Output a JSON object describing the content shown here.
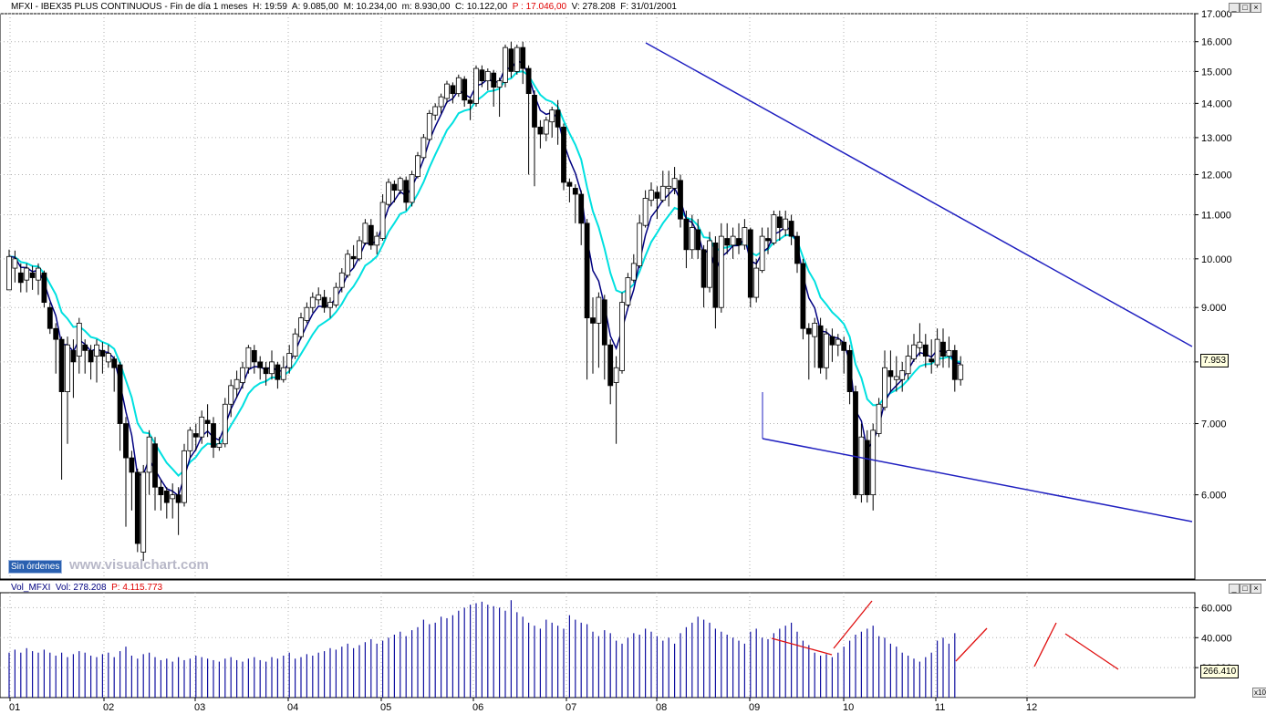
{
  "header": {
    "symbol_title": "MFXI - IBEX35 PLUS CONTINUOUS - Fin de día 1 meses",
    "h": "H: 19:59",
    "a": "A: 9.085,00",
    "m": "M: 10.234,00",
    "mn": "m: 8.930,00",
    "c": "C: 10.122,00",
    "p": "P : 17.046,00",
    "v": "V: 278.208",
    "f": "F: 31/01/2001"
  },
  "vol_header": {
    "title": "Vol_MFXI",
    "vol": "Vol: 278.208",
    "p": "P: 4.115.773"
  },
  "buttons": [
    "_",
    "□",
    "×"
  ],
  "sin_ordenes": "Sin órdenes",
  "watermark": "www.visualchart.com",
  "last_price_tag": "7.953",
  "last_volume_tag": "266.410",
  "volume_scale_tag": "x10",
  "colors": {
    "candle": "#000000",
    "ma_fast": "#000080",
    "ma_slow": "#00e0e0",
    "trend": "#2020c0",
    "volume": "#1010a0",
    "vol_annot": "#e01010",
    "title_red": "#e00000",
    "title_blue": "#000080"
  },
  "chart_data": {
    "type": "candlestick",
    "price_axis": {
      "scale": "log",
      "ticks": [
        "6.000",
        "7.000",
        "8.000",
        "9.000",
        "10.000",
        "11.000",
        "12.000",
        "13.000",
        "14.000",
        "15.000",
        "16.000",
        "17.000"
      ],
      "tick_values": [
        6000,
        7000,
        8000,
        9000,
        10000,
        11000,
        12000,
        13000,
        14000,
        15000,
        16000,
        17000
      ]
    },
    "volume_axis": {
      "ticks": [
        "20.000",
        "40.000",
        "60.000"
      ],
      "tick_values": [
        20000,
        40000,
        60000
      ]
    },
    "x_labels": [
      "01",
      "02",
      "03",
      "04",
      "05",
      "06",
      "07",
      "08",
      "09",
      "10",
      "11",
      "12"
    ],
    "grid": true,
    "candles": [
      [
        9350,
        10050,
        10200,
        9400
      ],
      [
        9800,
        10000,
        10180,
        9500
      ],
      [
        9700,
        9500,
        9900,
        9300
      ],
      [
        9550,
        9800,
        9900,
        9300
      ],
      [
        9700,
        9600,
        9850,
        9350
      ],
      [
        9550,
        9800,
        9900,
        9250
      ],
      [
        9700,
        9100,
        9750,
        9000
      ],
      [
        9000,
        8600,
        9100,
        8500
      ],
      [
        8600,
        8400,
        8700,
        7800
      ],
      [
        8400,
        7500,
        8450,
        6200
      ],
      [
        7500,
        8300,
        8450,
        6700
      ],
      [
        8200,
        8000,
        8400,
        7400
      ],
      [
        8100,
        8700,
        8800,
        7800
      ],
      [
        8300,
        8200,
        8400,
        7800
      ],
      [
        8200,
        8000,
        8300,
        7700
      ],
      [
        8100,
        8300,
        8400,
        7650
      ],
      [
        8200,
        8100,
        8350,
        7800
      ],
      [
        8000,
        8150,
        8300,
        7900
      ],
      [
        8050,
        7900,
        8100,
        7500
      ],
      [
        7950,
        7000,
        8000,
        6600
      ],
      [
        7000,
        6500,
        7100,
        5600
      ],
      [
        6500,
        6300,
        6600,
        5800
      ],
      [
        6300,
        5400,
        6350,
        5300
      ],
      [
        5300,
        6300,
        6400,
        5200
      ],
      [
        6300,
        6800,
        6900,
        6000
      ],
      [
        6700,
        6100,
        6800,
        5800
      ],
      [
        6100,
        6000,
        6200,
        5800
      ],
      [
        6050,
        5900,
        6100,
        5700
      ],
      [
        5950,
        6000,
        6150,
        5700
      ],
      [
        6000,
        5900,
        6100,
        5500
      ],
      [
        5900,
        6600,
        6700,
        5850
      ],
      [
        6600,
        6900,
        6950,
        6500
      ],
      [
        6850,
        6800,
        7000,
        6600
      ],
      [
        6800,
        7100,
        7200,
        6700
      ],
      [
        7050,
        7000,
        7300,
        6800
      ],
      [
        7000,
        6650,
        7100,
        6500
      ],
      [
        6650,
        6700,
        6800,
        6600
      ],
      [
        6700,
        7300,
        7400,
        6650
      ],
      [
        7300,
        7600,
        7700,
        7100
      ],
      [
        7550,
        7700,
        7850,
        7400
      ],
      [
        7650,
        7900,
        8000,
        7550
      ],
      [
        7900,
        8250,
        8300,
        7800
      ],
      [
        8200,
        8000,
        8300,
        7800
      ],
      [
        8000,
        7900,
        8100,
        7700
      ],
      [
        7900,
        7800,
        8000,
        7600
      ],
      [
        7800,
        8000,
        8200,
        7700
      ],
      [
        7950,
        7700,
        8000,
        7550
      ],
      [
        7700,
        7900,
        8100,
        7650
      ],
      [
        7900,
        8150,
        8300,
        7800
      ],
      [
        8100,
        8500,
        8600,
        8050
      ],
      [
        8450,
        8800,
        8900,
        8400
      ],
      [
        8750,
        9000,
        9100,
        8700
      ],
      [
        9000,
        9200,
        9300,
        8900
      ],
      [
        9150,
        9250,
        9400,
        9050
      ],
      [
        9200,
        9000,
        9350,
        8900
      ],
      [
        9000,
        9100,
        9200,
        8800
      ],
      [
        9050,
        9400,
        9500,
        9000
      ],
      [
        9400,
        9700,
        9800,
        9300
      ],
      [
        9650,
        10100,
        10200,
        9600
      ],
      [
        10050,
        10000,
        10300,
        9800
      ],
      [
        10000,
        10400,
        10500,
        9950
      ],
      [
        10350,
        10800,
        10900,
        10300
      ],
      [
        10750,
        10300,
        10900,
        10200
      ],
      [
        10300,
        10500,
        10600,
        10100
      ],
      [
        10450,
        11300,
        11500,
        10400
      ],
      [
        11250,
        11800,
        11900,
        11200
      ],
      [
        11750,
        11600,
        11850,
        11300
      ],
      [
        11600,
        11900,
        11950,
        11500
      ],
      [
        11850,
        11300,
        11950,
        11100
      ],
      [
        11300,
        12000,
        12100,
        11200
      ],
      [
        11950,
        12500,
        12600,
        11900
      ],
      [
        12450,
        13000,
        13100,
        12400
      ],
      [
        12950,
        13700,
        13800,
        12900
      ],
      [
        13650,
        13900,
        14000,
        13500
      ],
      [
        13900,
        14200,
        14300,
        13700
      ],
      [
        14150,
        14600,
        14700,
        14000
      ],
      [
        14550,
        14300,
        14650,
        14000
      ],
      [
        14300,
        14800,
        14900,
        14200
      ],
      [
        14750,
        14100,
        14850,
        13900
      ],
      [
        14100,
        14000,
        14200,
        13500
      ],
      [
        14000,
        15100,
        15200,
        13900
      ],
      [
        15050,
        14700,
        15200,
        14500
      ],
      [
        14700,
        15000,
        15100,
        14400
      ],
      [
        14950,
        14500,
        15050,
        13900
      ],
      [
        14500,
        14700,
        14800,
        13600
      ],
      [
        14650,
        15800,
        15900,
        14500
      ],
      [
        15750,
        15000,
        16000,
        14800
      ],
      [
        15000,
        15800,
        15900,
        14900
      ],
      [
        15800,
        15100,
        16000,
        14600
      ],
      [
        15100,
        14300,
        15200,
        12000
      ],
      [
        14250,
        13300,
        14400,
        11700
      ],
      [
        13300,
        13100,
        13500,
        12700
      ],
      [
        13100,
        13500,
        13600,
        12900
      ],
      [
        13450,
        13800,
        13900,
        13000
      ],
      [
        13800,
        13300,
        14100,
        12800
      ],
      [
        13300,
        11800,
        13400,
        11600
      ],
      [
        11800,
        11700,
        11900,
        11300
      ],
      [
        11650,
        11500,
        11750,
        10800
      ],
      [
        11500,
        10800,
        11600,
        10300
      ],
      [
        10800,
        8800,
        10900,
        7700
      ],
      [
        8800,
        8700,
        9200,
        7800
      ],
      [
        8700,
        9200,
        9300,
        7900
      ],
      [
        9150,
        8300,
        9250,
        7700
      ],
      [
        8300,
        7600,
        8400,
        7300
      ],
      [
        7650,
        7900,
        8100,
        6700
      ],
      [
        7850,
        9100,
        9300,
        7800
      ],
      [
        9050,
        9600,
        9700,
        9000
      ],
      [
        9550,
        9900,
        10100,
        9500
      ],
      [
        9850,
        10800,
        11000,
        9800
      ],
      [
        10750,
        11400,
        11600,
        10700
      ],
      [
        11350,
        11600,
        11800,
        11200
      ],
      [
        11550,
        11400,
        11700,
        10900
      ],
      [
        11350,
        11700,
        12100,
        11300
      ],
      [
        11650,
        11700,
        12100,
        11200
      ],
      [
        11650,
        11900,
        12200,
        11500
      ],
      [
        11850,
        10900,
        12000,
        10700
      ],
      [
        10900,
        10200,
        11100,
        9800
      ],
      [
        10200,
        10700,
        11000,
        10000
      ],
      [
        10650,
        10200,
        10900,
        10000
      ],
      [
        10200,
        9400,
        10300,
        9000
      ],
      [
        9400,
        10400,
        10600,
        9300
      ],
      [
        10350,
        9000,
        10500,
        8600
      ],
      [
        9000,
        10500,
        10800,
        8900
      ],
      [
        10450,
        10300,
        10800,
        10100
      ],
      [
        10300,
        10500,
        10700,
        10000
      ],
      [
        10450,
        10300,
        10800,
        10100
      ],
      [
        10300,
        10700,
        10900,
        10200
      ],
      [
        10650,
        9200,
        10700,
        9000
      ],
      [
        9200,
        9800,
        10000,
        9100
      ],
      [
        9750,
        10500,
        10700,
        9700
      ],
      [
        10450,
        10400,
        10700,
        10100
      ],
      [
        10350,
        11000,
        11100,
        10300
      ],
      [
        10950,
        10700,
        11100,
        10400
      ],
      [
        10650,
        10900,
        11100,
        10500
      ],
      [
        10850,
        10500,
        11000,
        10300
      ],
      [
        10500,
        9900,
        10600,
        9700
      ],
      [
        9900,
        8600,
        10000,
        8400
      ],
      [
        8600,
        8500,
        8700,
        7700
      ],
      [
        8450,
        8700,
        8800,
        7900
      ],
      [
        8650,
        7900,
        8800,
        7800
      ],
      [
        7900,
        8500,
        8600,
        7700
      ],
      [
        8450,
        8300,
        8600,
        8000
      ],
      [
        8300,
        8400,
        8500,
        8100
      ],
      [
        8350,
        8200,
        8450,
        7800
      ],
      [
        8200,
        7500,
        8300,
        7300
      ],
      [
        7500,
        6000,
        7600,
        5950
      ],
      [
        6000,
        6800,
        7000,
        5900
      ],
      [
        6750,
        6000,
        6900,
        5900
      ],
      [
        6000,
        6900,
        7000,
        5800
      ],
      [
        6850,
        7300,
        7400,
        6800
      ],
      [
        7250,
        7900,
        8200,
        7200
      ],
      [
        7850,
        7750,
        8200,
        7500
      ],
      [
        7700,
        7750,
        8100,
        7500
      ],
      [
        7700,
        7850,
        8000,
        7500
      ],
      [
        7800,
        8100,
        8300,
        7700
      ],
      [
        8050,
        8300,
        8500,
        8000
      ],
      [
        8250,
        8350,
        8700,
        8100
      ],
      [
        8300,
        8100,
        8500,
        7900
      ],
      [
        8050,
        8000,
        8400,
        7800
      ],
      [
        7950,
        8400,
        8600,
        7900
      ],
      [
        8350,
        8100,
        8600,
        7900
      ],
      [
        8100,
        8200,
        8450,
        7900
      ],
      [
        8200,
        7700,
        8300,
        7500
      ],
      [
        7700,
        7950,
        8100,
        7600
      ]
    ],
    "volumes": [
      30,
      32,
      30,
      33,
      31,
      30,
      32,
      30,
      28,
      30,
      27,
      29,
      31,
      30,
      28,
      27,
      29,
      30,
      27,
      31,
      34,
      28,
      26,
      29,
      30,
      27,
      25,
      26,
      24,
      27,
      25,
      26,
      28,
      27,
      26,
      25,
      24,
      26,
      27,
      25,
      24,
      26,
      27,
      25,
      24,
      27,
      26,
      28,
      30,
      26,
      27,
      29,
      28,
      30,
      31,
      33,
      32,
      34,
      36,
      33,
      35,
      37,
      39,
      36,
      38,
      40,
      42,
      44,
      41,
      45,
      47,
      52,
      49,
      50,
      54,
      53,
      55,
      58,
      60,
      62,
      63,
      64,
      62,
      61,
      60,
      58,
      65,
      57,
      54,
      50,
      48,
      46,
      52,
      50,
      48,
      46,
      55,
      52,
      50,
      49,
      44,
      41,
      45,
      43,
      38,
      36,
      40,
      43,
      42,
      46,
      44,
      41,
      38,
      40,
      36,
      43,
      47,
      50,
      54,
      52,
      50,
      46,
      44,
      42,
      40,
      38,
      36,
      44,
      46,
      40,
      39,
      43,
      46,
      48,
      50,
      44,
      38,
      35,
      30,
      28,
      29,
      27,
      30,
      34,
      38,
      42,
      44,
      46,
      48,
      41,
      40,
      36,
      34,
      30,
      28,
      26,
      24,
      27,
      30,
      38,
      40,
      36,
      43
    ],
    "trendlines": [
      {
        "from": {
          "date": "2000-08",
          "value": 16000
        },
        "to": {
          "date": "2001-01",
          "value": 8150
        }
      },
      {
        "from": {
          "date": "2000-09",
          "value": 6700
        },
        "to": {
          "date": "2001-01",
          "value": 5500
        }
      }
    ]
  }
}
